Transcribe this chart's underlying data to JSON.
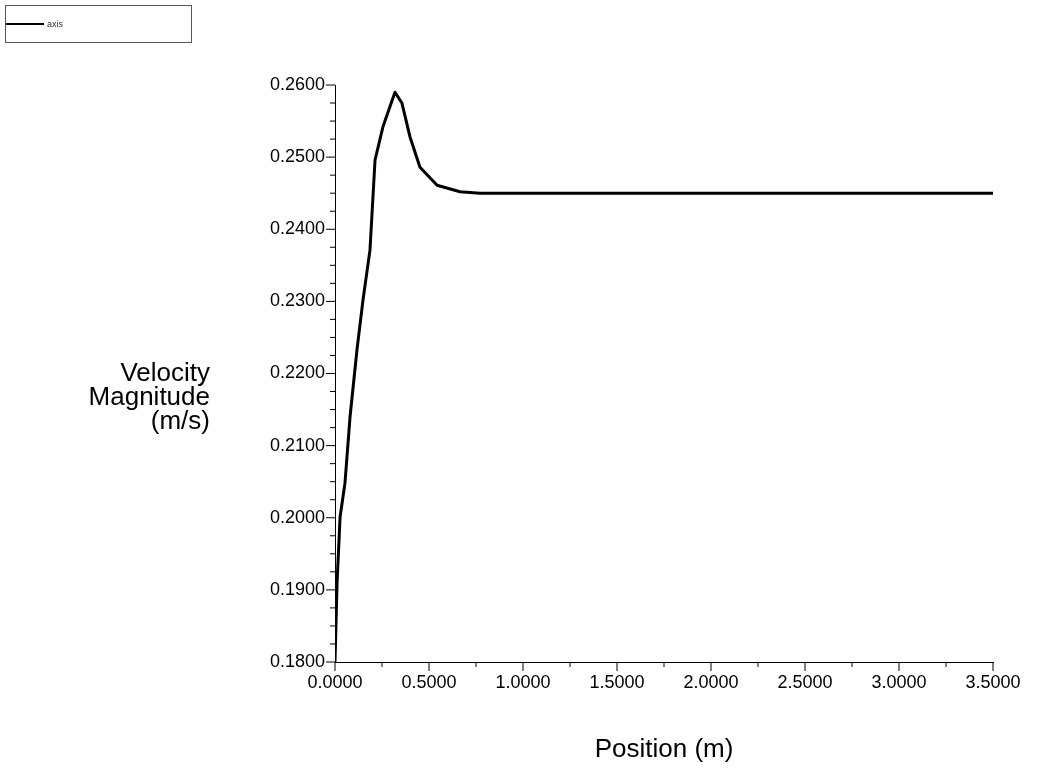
{
  "chart_data": {
    "type": "line",
    "xlabel": "Position (m)",
    "ylabel": "Velocity Magnitude (m/s)",
    "series": [
      {
        "name": "axis",
        "color": "#000000",
        "x": [
          0,
          0.011,
          0.027,
          0.053,
          0.08,
          0.117,
          0.149,
          0.186,
          0.213,
          0.255,
          0.319,
          0.356,
          0.399,
          0.452,
          0.543,
          0.665,
          0.771,
          1.5,
          2.5,
          3.5
        ],
        "values": [
          0.18,
          0.191,
          0.2001,
          0.2048,
          0.214,
          0.2233,
          0.2302,
          0.2371,
          0.2496,
          0.2542,
          0.259,
          0.2575,
          0.2528,
          0.2486,
          0.2461,
          0.2452,
          0.245,
          0.245,
          0.245,
          0.245
        ]
      }
    ],
    "xlim": [
      0,
      3.5
    ],
    "xticks": [
      {
        "value": 0,
        "label": "0.0000"
      },
      {
        "value": 0.25,
        "label": null
      },
      {
        "value": 0.5,
        "label": "0.5000"
      },
      {
        "value": 0.75,
        "label": null
      },
      {
        "value": 1,
        "label": "1.0000"
      },
      {
        "value": 1.25,
        "label": null
      },
      {
        "value": 1.5,
        "label": "1.5000"
      },
      {
        "value": 1.75,
        "label": null
      },
      {
        "value": 2,
        "label": "2.0000"
      },
      {
        "value": 2.25,
        "label": null
      },
      {
        "value": 2.5,
        "label": "2.5000"
      },
      {
        "value": 2.75,
        "label": null
      },
      {
        "value": 3,
        "label": "3.0000"
      },
      {
        "value": 3.25,
        "label": null
      },
      {
        "value": 3.5,
        "label": "3.5000"
      }
    ],
    "ylim": [
      0.18,
      0.26
    ],
    "yticks": [
      {
        "value": 0.18,
        "label": "0.1800"
      },
      {
        "value": 0.1825,
        "label": null
      },
      {
        "value": 0.185,
        "label": null
      },
      {
        "value": 0.1875,
        "label": null
      },
      {
        "value": 0.19,
        "label": "0.1900"
      },
      {
        "value": 0.1925,
        "label": null
      },
      {
        "value": 0.195,
        "label": null
      },
      {
        "value": 0.1975,
        "label": null
      },
      {
        "value": 0.2,
        "label": "0.2000"
      },
      {
        "value": 0.2025,
        "label": null
      },
      {
        "value": 0.205,
        "label": null
      },
      {
        "value": 0.2075,
        "label": null
      },
      {
        "value": 0.21,
        "label": "0.2100"
      },
      {
        "value": 0.2125,
        "label": null
      },
      {
        "value": 0.215,
        "label": null
      },
      {
        "value": 0.2175,
        "label": null
      },
      {
        "value": 0.22,
        "label": "0.2200"
      },
      {
        "value": 0.2225,
        "label": null
      },
      {
        "value": 0.225,
        "label": null
      },
      {
        "value": 0.2275,
        "label": null
      },
      {
        "value": 0.23,
        "label": "0.2300"
      },
      {
        "value": 0.2325,
        "label": null
      },
      {
        "value": 0.235,
        "label": null
      },
      {
        "value": 0.2375,
        "label": null
      },
      {
        "value": 0.24,
        "label": "0.2400"
      },
      {
        "value": 0.2425,
        "label": null
      },
      {
        "value": 0.245,
        "label": null
      },
      {
        "value": 0.2475,
        "label": null
      },
      {
        "value": 0.25,
        "label": "0.2500"
      },
      {
        "value": 0.2525,
        "label": null
      },
      {
        "value": 0.255,
        "label": null
      },
      {
        "value": 0.2575,
        "label": null
      },
      {
        "value": 0.26,
        "label": "0.2600"
      }
    ],
    "grid": false,
    "legend": "top left",
    "marker": "none",
    "line_style": "solid"
  }
}
